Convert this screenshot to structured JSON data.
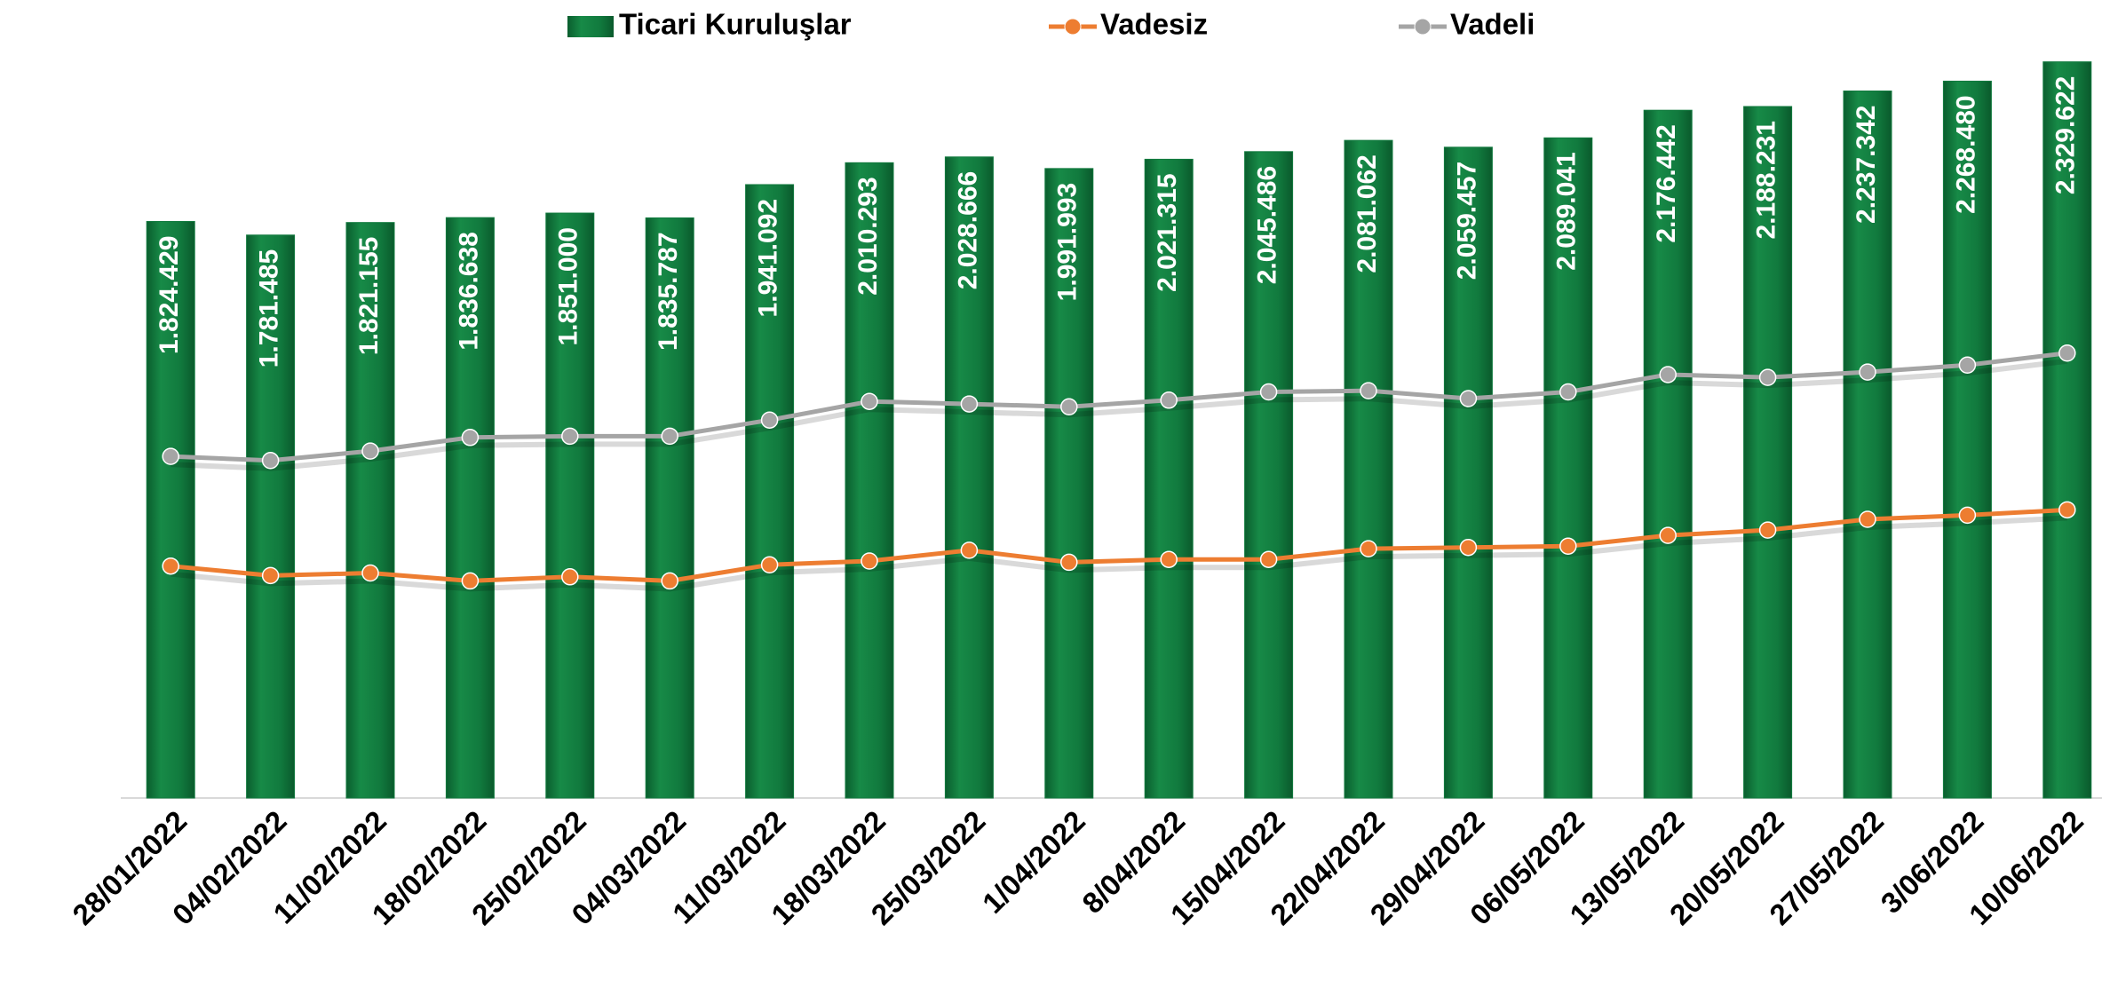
{
  "chart_data": {
    "type": "bar",
    "categories": [
      "28/01/2022",
      "04/02/2022",
      "11/02/2022",
      "18/02/2022",
      "25/02/2022",
      "04/03/2022",
      "11/03/2022",
      "18/03/2022",
      "25/03/2022",
      "1/04/2022",
      "8/04/2022",
      "15/04/2022",
      "22/04/2022",
      "29/04/2022",
      "06/05/2022",
      "13/05/2022",
      "20/05/2022",
      "27/05/2022",
      "3/06/2022",
      "10/06/2022"
    ],
    "series": [
      {
        "name": "Ticari Kuruluşlar",
        "type": "bar",
        "color": "#117a3e",
        "values": [
          1824429,
          1781485,
          1821155,
          1836638,
          1851000,
          1835787,
          1941092,
          2010293,
          2028666,
          1991993,
          2021315,
          2045486,
          2081062,
          2059457,
          2089041,
          2176442,
          2188231,
          2237342,
          2268480,
          2329622
        ],
        "value_labels": [
          "1.824.429",
          "1.781.485",
          "1.821.155",
          "1.836.638",
          "1.851.000",
          "1.835.787",
          "1.941.092",
          "2.010.293",
          "2.028.666",
          "1.991.993",
          "2.021.315",
          "2.045.486",
          "2.081.062",
          "2.059.457",
          "2.089.041",
          "2.176.442",
          "2.188.231",
          "2.237.342",
          "2.268.480",
          "2.329.622"
        ]
      },
      {
        "name": "Vadesiz",
        "type": "line",
        "color": "#ed7d31",
        "values": [
          734000,
          704000,
          712000,
          687000,
          700000,
          687000,
          738000,
          750000,
          784000,
          746000,
          755000,
          755000,
          789000,
          793000,
          797000,
          831000,
          848000,
          882000,
          895000,
          912000
        ]
      },
      {
        "name": "Vadeli",
        "type": "line",
        "color": "#a5a5a5",
        "values": [
          1081000,
          1068000,
          1098000,
          1141000,
          1145000,
          1145000,
          1196000,
          1255000,
          1247000,
          1238000,
          1259000,
          1285000,
          1289000,
          1264000,
          1285000,
          1340000,
          1331000,
          1348000,
          1370000,
          1408000
        ]
      }
    ],
    "ylim": [
      0,
      2500000
    ]
  }
}
